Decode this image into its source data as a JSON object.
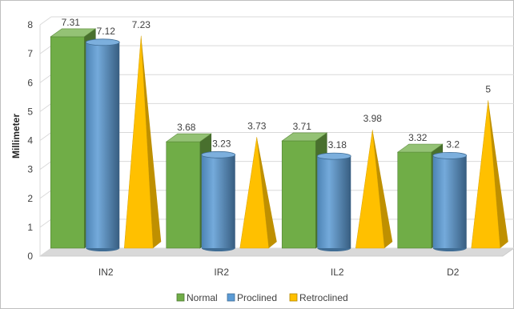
{
  "chart_data": {
    "type": "bar",
    "categories": [
      "IN2",
      "IR2",
      "IL2",
      "D2"
    ],
    "series": [
      {
        "name": "Normal",
        "values": [
          7.31,
          3.68,
          3.71,
          3.32
        ],
        "color": "#70ad47",
        "shape": "box"
      },
      {
        "name": "Proclined",
        "values": [
          7.12,
          3.23,
          3.18,
          3.2
        ],
        "color": "#5b9bd5",
        "shape": "cylinder"
      },
      {
        "name": "Retroclined",
        "values": [
          7.23,
          3.73,
          3.98,
          5
        ],
        "color": "#ffc000",
        "shape": "pyramid"
      }
    ],
    "data_labels": [
      [
        "7.31",
        "3.68",
        "3.71",
        "3.32"
      ],
      [
        "7.12",
        "3.23",
        "3.18",
        "3.2"
      ],
      [
        "7.23",
        "3.73",
        "3.98",
        "5"
      ]
    ],
    "yticks": [
      "0",
      "1",
      "2",
      "3",
      "4",
      "5",
      "6",
      "7",
      "8"
    ],
    "ylabel": "Millimeter",
    "xlabel": "",
    "ylim": [
      0,
      8
    ],
    "grid": true,
    "legend_position": "bottom",
    "three_d": true
  }
}
